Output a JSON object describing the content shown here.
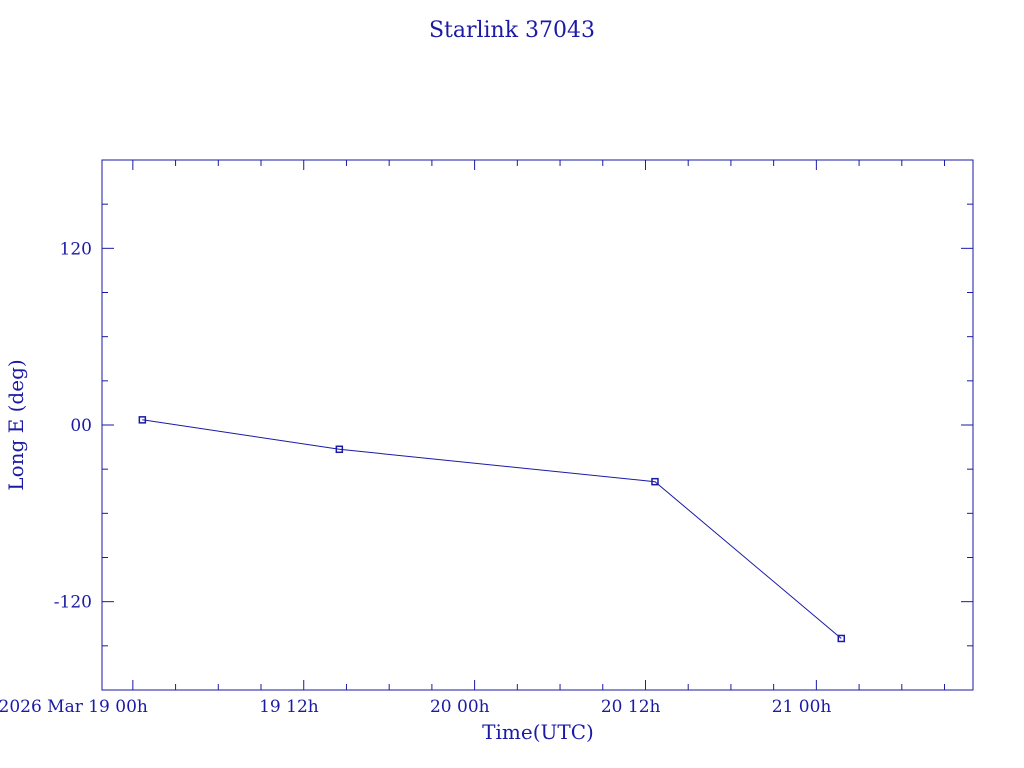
{
  "chart_data": {
    "type": "line",
    "title": "Starlink 37043",
    "xlabel": "Time(UTC)",
    "ylabel": "Long E (deg)",
    "xlim": [
      "2026-03-18T21:50",
      "2026-03-21T11:00"
    ],
    "ylim": [
      -180,
      180
    ],
    "x_tick_labels": [
      "2026 Mar 19  00h",
      "19  12h",
      "20  00h",
      "20  12h",
      "21  00h"
    ],
    "y_tick_labels": [
      "120",
      "00",
      "-120"
    ],
    "y_ticks": [
      120,
      0,
      -120
    ],
    "series": [
      {
        "points": [
          {
            "x": "2026-03-19T00:40",
            "y": 3.5
          },
          {
            "x": "2026-03-19T14:30",
            "y": -16.5
          },
          {
            "x": "2026-03-20T12:40",
            "y": -38.5
          },
          {
            "x": "2026-03-21T01:45",
            "y": -145
          }
        ]
      }
    ],
    "color": "#1a1aa6",
    "grid": false
  }
}
